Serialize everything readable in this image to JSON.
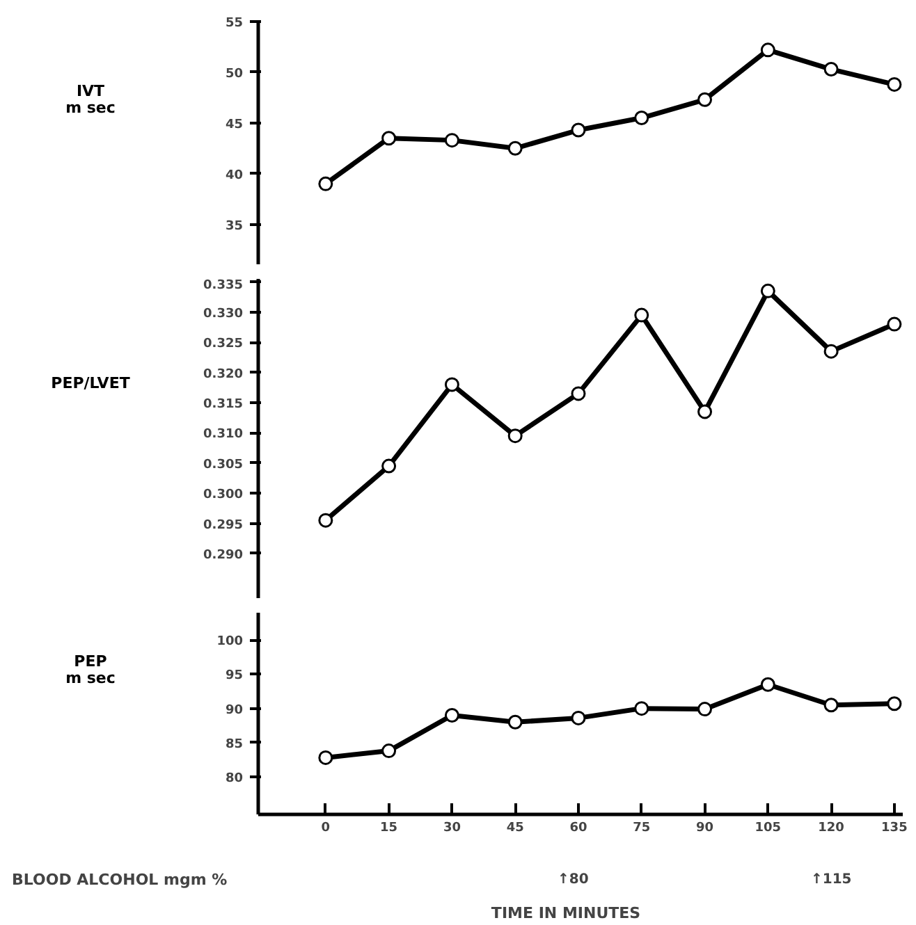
{
  "chart_data": [
    {
      "type": "line",
      "ylabel": "IVT\nm sec",
      "marker": "circle",
      "line_style": "solid",
      "grid": false,
      "tick_labels": "y",
      "x": [
        0,
        15,
        30,
        45,
        60,
        75,
        90,
        105,
        120,
        135
      ],
      "series": [
        {
          "color": "#000000",
          "values": [
            39,
            43.5,
            43.3,
            42.5,
            44.3,
            45.5,
            47.3,
            52.2,
            50.3,
            48.8
          ]
        }
      ],
      "ylim": [
        31,
        55
      ],
      "yticks": [
        35,
        40,
        45,
        50,
        55
      ]
    },
    {
      "type": "line",
      "ylabel": "PEP/LVET",
      "marker": "circle",
      "line_style": "solid",
      "grid": false,
      "tick_labels": "y",
      "x": [
        0,
        15,
        30,
        45,
        60,
        75,
        90,
        105,
        120,
        135
      ],
      "series": [
        {
          "color": "#000000",
          "values": [
            0.2955,
            0.3045,
            0.318,
            0.3095,
            0.3165,
            0.3295,
            0.3135,
            0.3335,
            0.3235,
            0.328
          ]
        }
      ],
      "ylim": [
        0.2825,
        0.3355
      ],
      "yticks": [
        {
          "value": 0.29,
          "label": "0.290"
        },
        {
          "value": 0.295,
          "label": "0.295"
        },
        {
          "value": 0.3,
          "label": "0.300"
        },
        {
          "value": 0.305,
          "label": "0.305"
        },
        {
          "value": 0.31,
          "label": "0.310"
        },
        {
          "value": 0.315,
          "label": "0.315"
        },
        {
          "value": 0.32,
          "label": "0.320"
        },
        {
          "value": 0.325,
          "label": "0.325"
        },
        {
          "value": 0.33,
          "label": "0.330"
        },
        {
          "value": 0.335,
          "label": "0.335"
        }
      ]
    },
    {
      "type": "line",
      "ylabel": "PEP\nm sec",
      "xlabel": "TIME IN MINUTES",
      "marker": "circle",
      "line_style": "solid",
      "grid": false,
      "x": [
        0,
        15,
        30,
        45,
        60,
        75,
        90,
        105,
        120,
        135
      ],
      "xlim": [
        -16,
        137
      ],
      "xticks": [
        0,
        15,
        30,
        45,
        60,
        75,
        90,
        105,
        120,
        135
      ],
      "series": [
        {
          "color": "#000000",
          "values": [
            82.8,
            83.8,
            89,
            88,
            88.6,
            90,
            89.9,
            93.5,
            90.5,
            90.7
          ]
        }
      ],
      "ylim": [
        74.5,
        104
      ],
      "yticks": [
        80,
        85,
        90,
        95,
        100
      ],
      "annotations": [
        "BLOOD ALCOHOL mgm %",
        "↑80",
        "↑115"
      ]
    }
  ]
}
